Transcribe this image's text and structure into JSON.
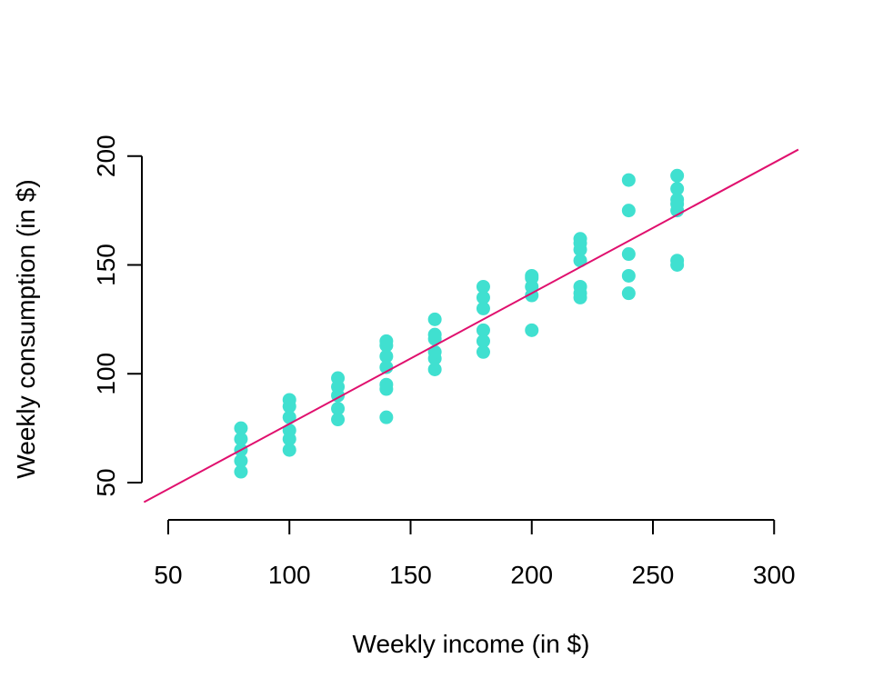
{
  "chart_data": {
    "type": "scatter",
    "title": "",
    "xlabel": "Weekly income (in $)",
    "ylabel": "Weekly consumption  (in $)",
    "xlim": [
      40,
      310
    ],
    "ylim": [
      40,
      202
    ],
    "x_ticks": [
      50,
      100,
      150,
      200,
      250,
      300
    ],
    "y_ticks": [
      50,
      100,
      150,
      200
    ],
    "grid": false,
    "point_color": "#40E0D0",
    "line_color": "#E0106E",
    "regression_line": {
      "intercept": 17,
      "slope": 0.6,
      "x_range": [
        40,
        310
      ]
    },
    "series": [
      {
        "x": [
          80,
          80,
          80,
          80,
          80,
          100,
          100,
          100,
          100,
          100,
          100,
          120,
          120,
          120,
          120,
          120,
          140,
          140,
          140,
          140,
          140,
          140,
          140,
          160,
          160,
          160,
          160,
          160,
          160,
          180,
          180,
          180,
          180,
          180,
          180,
          200,
          200,
          200,
          200,
          200,
          220,
          220,
          220,
          220,
          220,
          220,
          220,
          240,
          240,
          240,
          240,
          240,
          260,
          260,
          260,
          260,
          260,
          260,
          260
        ],
        "y": [
          55,
          60,
          65,
          70,
          75,
          65,
          70,
          74,
          80,
          85,
          88,
          79,
          84,
          90,
          94,
          98,
          80,
          93,
          95,
          103,
          108,
          113,
          115,
          102,
          107,
          110,
          116,
          118,
          125,
          110,
          115,
          120,
          130,
          135,
          140,
          120,
          136,
          140,
          144,
          145,
          135,
          137,
          140,
          152,
          157,
          160,
          162,
          137,
          145,
          155,
          175,
          189,
          150,
          152,
          175,
          178,
          180,
          185,
          191
        ]
      }
    ]
  }
}
